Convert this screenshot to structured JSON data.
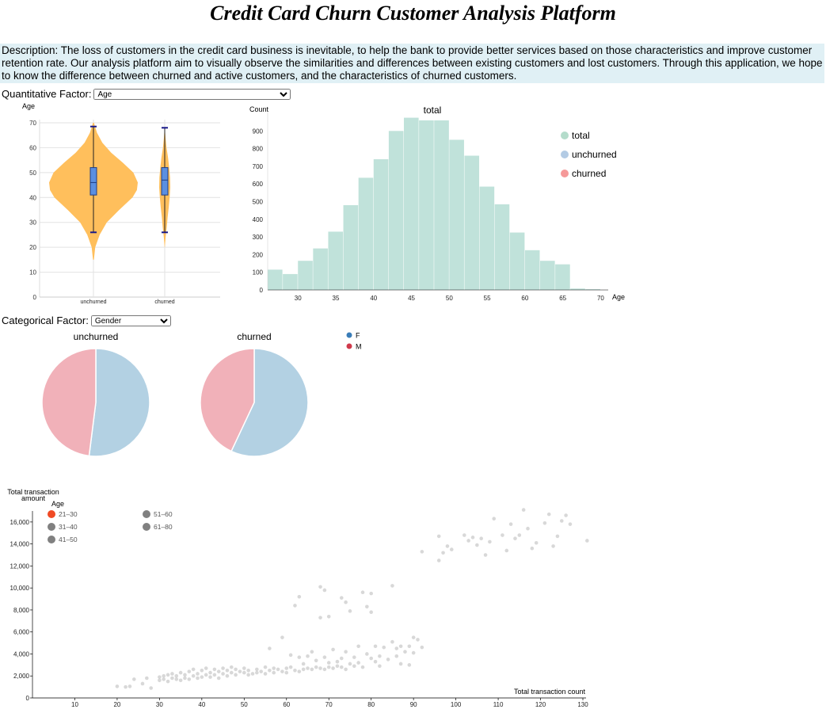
{
  "page": {
    "title": "Credit Card Churn Customer Analysis Platform",
    "description": "Description: The loss of customers in the credit card business is inevitable, to help the bank to provide better services based on those characteristics and improve customer retention rate. Our analysis platform aim to visually observe the similarities and differences between existing customers and lost customers. Through this application, we hope to know the difference between churned and active customers, and the characteristics of churned customers."
  },
  "controls": {
    "quantitative_label": "Quantitative Factor:",
    "quantitative_value": "Age",
    "categorical_label": "Categorical Factor:",
    "categorical_value": "Gender"
  },
  "chart_data": [
    {
      "type": "violin",
      "ylabel": "Age",
      "ylim": [
        0,
        70
      ],
      "yticks": [
        0,
        10,
        20,
        30,
        40,
        50,
        60,
        70
      ],
      "categories": [
        "unchurned",
        "churned"
      ],
      "fill_color": "#ffbf5c",
      "box_color": "#5b8fe0",
      "groups": [
        {
          "name": "unchurned",
          "whisker_low": 26,
          "q1": 41,
          "median": 46,
          "q3": 52,
          "whisker_high": 68.5,
          "min": 15,
          "max": 70,
          "density": [
            [
              15,
              0.01
            ],
            [
              20,
              0.04
            ],
            [
              25,
              0.14
            ],
            [
              30,
              0.3
            ],
            [
              35,
              0.58
            ],
            [
              40,
              0.88
            ],
            [
              43,
              0.98
            ],
            [
              46,
              1.0
            ],
            [
              50,
              0.9
            ],
            [
              54,
              0.66
            ],
            [
              58,
              0.4
            ],
            [
              62,
              0.2
            ],
            [
              66,
              0.08
            ],
            [
              70,
              0.01
            ]
          ]
        },
        {
          "name": "churned",
          "whisker_low": 26,
          "q1": 41,
          "median": 47,
          "q3": 52,
          "whisker_high": 68,
          "min": 20,
          "max": 68,
          "density": [
            [
              20,
              0.01
            ],
            [
              24,
              0.08
            ],
            [
              28,
              0.18
            ],
            [
              32,
              0.26
            ],
            [
              36,
              0.36
            ],
            [
              40,
              0.44
            ],
            [
              44,
              0.5
            ],
            [
              48,
              0.48
            ],
            [
              52,
              0.4
            ],
            [
              56,
              0.3
            ],
            [
              60,
              0.16
            ],
            [
              64,
              0.07
            ],
            [
              68,
              0.01
            ]
          ]
        }
      ]
    },
    {
      "type": "bar",
      "title": "total",
      "xlabel": "Age",
      "ylabel": "Count",
      "xlim": [
        26,
        71
      ],
      "ylim": [
        0,
        1000
      ],
      "xticks": [
        30,
        35,
        40,
        45,
        50,
        55,
        60,
        65,
        70
      ],
      "yticks": [
        0,
        100,
        200,
        300,
        400,
        500,
        600,
        700,
        800,
        900
      ],
      "bin_width": 2,
      "bins": [
        26,
        28,
        30,
        32,
        34,
        36,
        38,
        40,
        42,
        44,
        46,
        48,
        50,
        52,
        54,
        56,
        58,
        60,
        62,
        64,
        66,
        68
      ],
      "counts": [
        115,
        90,
        165,
        235,
        330,
        480,
        635,
        740,
        900,
        975,
        960,
        960,
        850,
        760,
        585,
        485,
        325,
        225,
        165,
        145,
        8,
        4
      ],
      "bar_color": "#c0e2da",
      "legend": [
        {
          "label": "total",
          "color": "#b4dccb"
        },
        {
          "label": "unchurned",
          "color": "#b3cbe4"
        },
        {
          "label": "churned",
          "color": "#f59999"
        }
      ]
    },
    {
      "type": "pie",
      "title": "unchurned",
      "slices": [
        {
          "label": "F",
          "value": 52,
          "color": "#b3d1e3"
        },
        {
          "label": "M",
          "value": 48,
          "color": "#f1b1b9"
        }
      ]
    },
    {
      "type": "pie",
      "title": "churned",
      "slices": [
        {
          "label": "F",
          "value": 57,
          "color": "#b3d1e3"
        },
        {
          "label": "M",
          "value": 43,
          "color": "#f1b1b9"
        }
      ],
      "legend": [
        {
          "label": "F",
          "color": "#3a7db8"
        },
        {
          "label": "M",
          "color": "#d03a4c"
        }
      ]
    },
    {
      "type": "scatter",
      "xlabel": "Total transaction count",
      "ylabel": "Total transaction amount",
      "xlim": [
        0,
        130
      ],
      "ylim": [
        0,
        17000
      ],
      "xticks": [
        10,
        20,
        30,
        40,
        50,
        60,
        70,
        80,
        90,
        100,
        110,
        120,
        130
      ],
      "yticks": [
        0,
        2000,
        4000,
        6000,
        8000,
        10000,
        12000,
        14000,
        16000
      ],
      "legend_title": "Age",
      "legend": [
        {
          "label": "21–30",
          "color": "#f04a24"
        },
        {
          "label": "31–40",
          "color": "#808080"
        },
        {
          "label": "41–50",
          "color": "#808080"
        },
        {
          "label": "51–60",
          "color": "#808080"
        },
        {
          "label": "61–80",
          "color": "#808080"
        }
      ],
      "points": [
        [
          20,
          1050
        ],
        [
          22,
          1000
        ],
        [
          23,
          1050
        ],
        [
          24,
          1700
        ],
        [
          26,
          1300
        ],
        [
          27,
          1800
        ],
        [
          28,
          900
        ],
        [
          30,
          1600
        ],
        [
          30,
          1900
        ],
        [
          31,
          1700
        ],
        [
          31,
          2000
        ],
        [
          32,
          1500
        ],
        [
          32,
          2100
        ],
        [
          33,
          1800
        ],
        [
          33,
          2200
        ],
        [
          34,
          1700
        ],
        [
          34,
          2000
        ],
        [
          35,
          2300
        ],
        [
          35,
          1600
        ],
        [
          36,
          2100
        ],
        [
          36,
          1800
        ],
        [
          37,
          2400
        ],
        [
          37,
          1700
        ],
        [
          38,
          2000
        ],
        [
          38,
          2600
        ],
        [
          39,
          1800
        ],
        [
          39,
          2200
        ],
        [
          40,
          2500
        ],
        [
          40,
          1900
        ],
        [
          41,
          2100
        ],
        [
          41,
          2700
        ],
        [
          42,
          2300
        ],
        [
          42,
          1900
        ],
        [
          43,
          2600
        ],
        [
          43,
          2100
        ],
        [
          44,
          2400
        ],
        [
          44,
          1800
        ],
        [
          45,
          2200
        ],
        [
          45,
          2700
        ],
        [
          46,
          2500
        ],
        [
          46,
          2000
        ],
        [
          47,
          2300
        ],
        [
          47,
          2800
        ],
        [
          48,
          2100
        ],
        [
          48,
          2600
        ],
        [
          49,
          2400
        ],
        [
          50,
          2300
        ],
        [
          50,
          2700
        ],
        [
          51,
          2500
        ],
        [
          51,
          2100
        ],
        [
          52,
          2200
        ],
        [
          53,
          2600
        ],
        [
          53,
          2300
        ],
        [
          54,
          2400
        ],
        [
          55,
          2800
        ],
        [
          55,
          2200
        ],
        [
          56,
          2500
        ],
        [
          56,
          4500
        ],
        [
          57,
          2300
        ],
        [
          57,
          2700
        ],
        [
          58,
          2600
        ],
        [
          59,
          5500
        ],
        [
          59,
          2400
        ],
        [
          60,
          2300
        ],
        [
          60,
          2700
        ],
        [
          61,
          2800
        ],
        [
          61,
          3900
        ],
        [
          62,
          2500
        ],
        [
          62,
          8400
        ],
        [
          63,
          2400
        ],
        [
          63,
          9200
        ],
        [
          63,
          3700
        ],
        [
          64,
          2600
        ],
        [
          64,
          3100
        ],
        [
          65,
          2700
        ],
        [
          65,
          3800
        ],
        [
          66,
          2600
        ],
        [
          66,
          4200
        ],
        [
          67,
          2800
        ],
        [
          67,
          3400
        ],
        [
          68,
          2700
        ],
        [
          68,
          10100
        ],
        [
          68,
          7300
        ],
        [
          69,
          2600
        ],
        [
          69,
          9800
        ],
        [
          69,
          3700
        ],
        [
          70,
          2800
        ],
        [
          70,
          7400
        ],
        [
          70,
          3200
        ],
        [
          71,
          2700
        ],
        [
          71,
          4400
        ],
        [
          72,
          3300
        ],
        [
          72,
          2900
        ],
        [
          73,
          2800
        ],
        [
          73,
          9100
        ],
        [
          73,
          3600
        ],
        [
          74,
          2600
        ],
        [
          74,
          8700
        ],
        [
          74,
          4200
        ],
        [
          75,
          3100
        ],
        [
          75,
          7900
        ],
        [
          76,
          2900
        ],
        [
          76,
          3700
        ],
        [
          77,
          4700
        ],
        [
          77,
          3200
        ],
        [
          78,
          9600
        ],
        [
          78,
          2800
        ],
        [
          79,
          4000
        ],
        [
          79,
          8300
        ],
        [
          80,
          9500
        ],
        [
          80,
          7800
        ],
        [
          80,
          3600
        ],
        [
          81,
          3300
        ],
        [
          81,
          4700
        ],
        [
          82,
          3800
        ],
        [
          82,
          2900
        ],
        [
          83,
          4600
        ],
        [
          84,
          3500
        ],
        [
          85,
          5100
        ],
        [
          85,
          10200
        ],
        [
          86,
          4500
        ],
        [
          86,
          3800
        ],
        [
          87,
          3100
        ],
        [
          87,
          4700
        ],
        [
          88,
          4200
        ],
        [
          89,
          3000
        ],
        [
          89,
          4700
        ],
        [
          90,
          5500
        ],
        [
          90,
          4100
        ],
        [
          91,
          5300
        ],
        [
          92,
          13300
        ],
        [
          92,
          4600
        ],
        [
          96,
          12500
        ],
        [
          96,
          14700
        ],
        [
          97,
          13200
        ],
        [
          98,
          13800
        ],
        [
          99,
          13500
        ],
        [
          102,
          14800
        ],
        [
          103,
          14300
        ],
        [
          104,
          14600
        ],
        [
          105,
          13900
        ],
        [
          106,
          14500
        ],
        [
          107,
          13000
        ],
        [
          108,
          14200
        ],
        [
          109,
          16300
        ],
        [
          111,
          14800
        ],
        [
          112,
          13400
        ],
        [
          113,
          15800
        ],
        [
          114,
          14500
        ],
        [
          115,
          14800
        ],
        [
          116,
          17100
        ],
        [
          117,
          15400
        ],
        [
          118,
          13600
        ],
        [
          119,
          14100
        ],
        [
          121,
          15900
        ],
        [
          122,
          16700
        ],
        [
          123,
          13800
        ],
        [
          124,
          14700
        ],
        [
          125,
          16100
        ],
        [
          126,
          16600
        ],
        [
          127,
          15800
        ],
        [
          131,
          14300
        ]
      ]
    }
  ]
}
